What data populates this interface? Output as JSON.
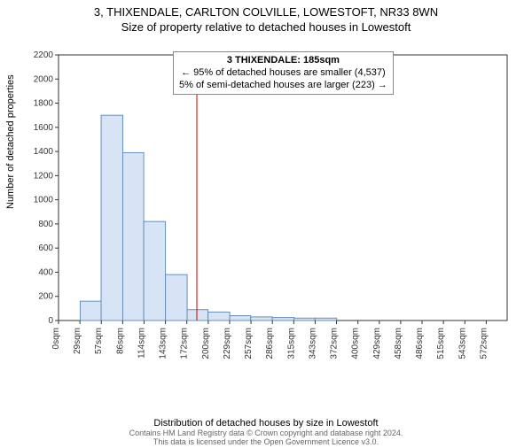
{
  "title": "3, THIXENDALE, CARLTON COLVILLE, LOWESTOFT, NR33 8WN",
  "subtitle": "Size of property relative to detached houses in Lowestoft",
  "ylabel": "Number of detached properties",
  "xlabel": "Distribution of detached houses by size in Lowestoft",
  "footer": "Contains HM Land Registry data © Crown copyright and database right 2024.\nThis data is licensed under the Open Government Licence v3.0.",
  "box": {
    "line1": "3 THIXENDALE: 185sqm",
    "line2": "← 95% of detached houses are smaller (4,537)",
    "line3": "5% of semi-detached houses are larger (223) →"
  },
  "chart": {
    "type": "histogram",
    "marker_x": 185,
    "marker_color": "#cc0000",
    "bar_fill": "#d6e4f5",
    "bar_stroke": "#6a8fb8",
    "axis_color": "#333333",
    "grid_color": "#e0e0e0",
    "tick_color": "#333333",
    "xlim": [
      0,
      600
    ],
    "ylim": [
      0,
      2200
    ],
    "ytick_step": 200,
    "xtick_step": 28.6,
    "xtick_labels": [
      "0sqm",
      "29sqm",
      "57sqm",
      "86sqm",
      "114sqm",
      "143sqm",
      "172sqm",
      "200sqm",
      "229sqm",
      "257sqm",
      "286sqm",
      "315sqm",
      "343sqm",
      "372sqm",
      "400sqm",
      "429sqm",
      "458sqm",
      "486sqm",
      "515sqm",
      "543sqm",
      "572sqm"
    ],
    "bars": [
      {
        "x_start": 29,
        "x_end": 57,
        "value": 160
      },
      {
        "x_start": 57,
        "x_end": 86,
        "value": 1700
      },
      {
        "x_start": 86,
        "x_end": 114,
        "value": 1390
      },
      {
        "x_start": 114,
        "x_end": 143,
        "value": 820
      },
      {
        "x_start": 143,
        "x_end": 172,
        "value": 380
      },
      {
        "x_start": 172,
        "x_end": 200,
        "value": 90
      },
      {
        "x_start": 200,
        "x_end": 229,
        "value": 70
      },
      {
        "x_start": 229,
        "x_end": 257,
        "value": 40
      },
      {
        "x_start": 257,
        "x_end": 286,
        "value": 30
      },
      {
        "x_start": 286,
        "x_end": 315,
        "value": 25
      },
      {
        "x_start": 315,
        "x_end": 343,
        "value": 20
      },
      {
        "x_start": 343,
        "x_end": 372,
        "value": 20
      },
      {
        "x_start": 372,
        "x_end": 400,
        "value": 0
      },
      {
        "x_start": 400,
        "x_end": 429,
        "value": 0
      },
      {
        "x_start": 429,
        "x_end": 458,
        "value": 0
      }
    ],
    "tick_fontsize": 10,
    "title_fontsize": 13
  }
}
